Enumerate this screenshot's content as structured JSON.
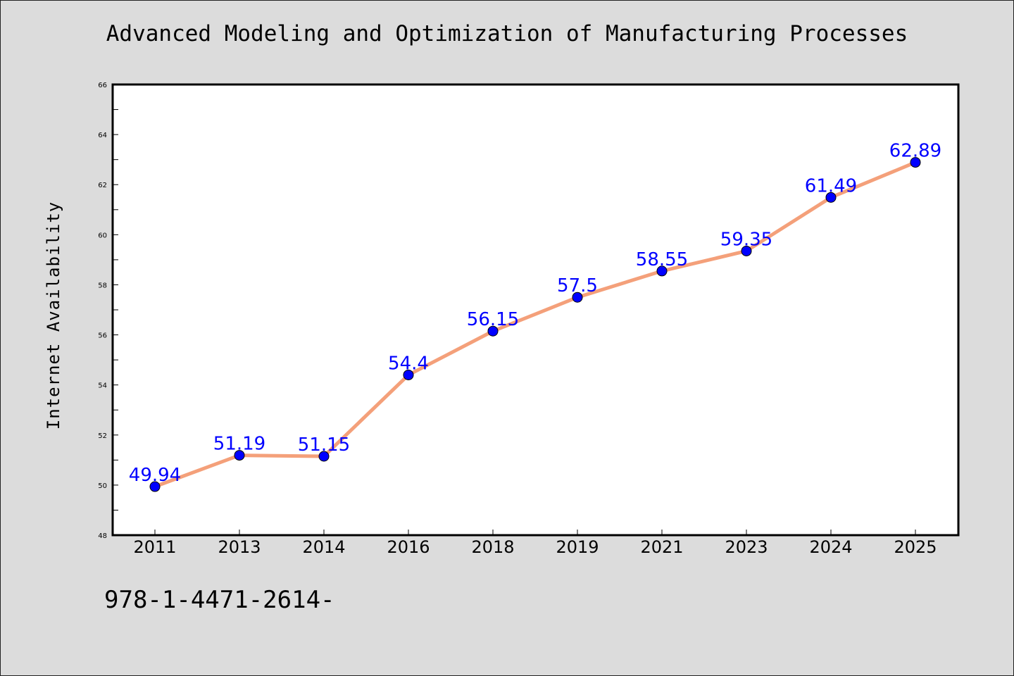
{
  "title": "Advanced Modeling and Optimization of Manufacturing Processes",
  "footer": "978-1-4471-2614-",
  "colors": {
    "background": "#dcdcdc",
    "plot_background": "#ffffff",
    "line": "#f4a07a",
    "marker": "#0000ff",
    "label": "#0000ff"
  },
  "chart_data": {
    "type": "line",
    "title": "Advanced Modeling and Optimization of Manufacturing Processes",
    "xlabel": "",
    "ylabel": "Internet Availability",
    "categories": [
      "2011",
      "2013",
      "2014",
      "2016",
      "2018",
      "2019",
      "2021",
      "2023",
      "2024",
      "2025"
    ],
    "series": [
      {
        "values": [
          49.94,
          51.19,
          51.15,
          54.4,
          56.15,
          57.5,
          58.55,
          59.35,
          61.49,
          62.89
        ],
        "labels": [
          "49.94",
          "51.19",
          "51.15",
          "54.4",
          "56.15",
          "57.5",
          "58.55",
          "59.35",
          "61.49",
          "62.89"
        ]
      }
    ],
    "ylim": [
      48,
      66
    ],
    "yticks": [
      "48",
      "50",
      "52",
      "54",
      "56",
      "58",
      "60",
      "62",
      "64",
      "66"
    ],
    "grid": false,
    "legend": "none"
  }
}
